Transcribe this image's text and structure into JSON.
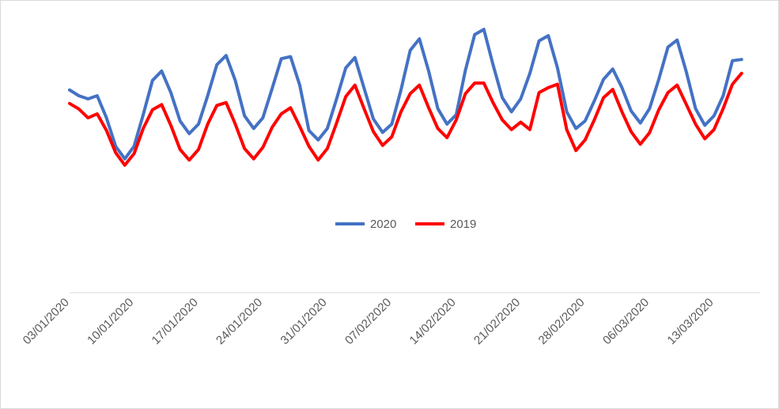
{
  "chart_data": {
    "type": "line",
    "title": "",
    "xlabel": "",
    "ylabel": "",
    "grid": false,
    "legend_position": "center",
    "tick_labels": [
      "03/01/2020",
      "10/01/2020",
      "17/01/2020",
      "24/01/2020",
      "31/01/2020",
      "07/02/2020",
      "14/02/2020",
      "21/02/2020",
      "28/02/2020",
      "06/03/2020",
      "13/03/2020"
    ],
    "x": [
      "03/01/2020",
      "04/01/2020",
      "05/01/2020",
      "06/01/2020",
      "07/01/2020",
      "08/01/2020",
      "09/01/2020",
      "10/01/2020",
      "11/01/2020",
      "12/01/2020",
      "13/01/2020",
      "14/01/2020",
      "15/01/2020",
      "16/01/2020",
      "17/01/2020",
      "18/01/2020",
      "19/01/2020",
      "20/01/2020",
      "21/01/2020",
      "22/01/2020",
      "23/01/2020",
      "24/01/2020",
      "25/01/2020",
      "26/01/2020",
      "27/01/2020",
      "28/01/2020",
      "29/01/2020",
      "30/01/2020",
      "31/01/2020",
      "01/02/2020",
      "02/02/2020",
      "03/02/2020",
      "04/02/2020",
      "05/02/2020",
      "06/02/2020",
      "07/02/2020",
      "08/02/2020",
      "09/02/2020",
      "10/02/2020",
      "11/02/2020",
      "12/02/2020",
      "13/02/2020",
      "14/02/2020",
      "15/02/2020",
      "16/02/2020",
      "17/02/2020",
      "18/02/2020",
      "19/02/2020",
      "20/02/2020",
      "21/02/2020",
      "22/02/2020",
      "23/02/2020",
      "24/02/2020",
      "25/02/2020",
      "26/02/2020",
      "27/02/2020",
      "28/02/2020",
      "29/02/2020",
      "01/03/2020",
      "02/03/2020",
      "03/03/2020",
      "04/03/2020",
      "05/03/2020",
      "06/03/2020",
      "07/03/2020",
      "08/03/2020",
      "09/03/2020",
      "10/03/2020",
      "11/03/2020",
      "12/03/2020",
      "13/03/2020",
      "14/03/2020",
      "15/03/2020",
      "16/03/2020",
      "17/03/2020"
    ],
    "ylim": [
      0,
      100
    ],
    "series": [
      {
        "name": "2020",
        "color": "#4472c4",
        "values": [
          70.6,
          68.6,
          67.5,
          68.6,
          60.9,
          51.0,
          46.6,
          51.0,
          62.0,
          73.9,
          77.2,
          69.7,
          59.8,
          55.4,
          58.7,
          68.6,
          79.4,
          82.6,
          73.9,
          61.6,
          57.2,
          60.9,
          71.1,
          81.5,
          82.2,
          72.3,
          56.5,
          53.2,
          57.2,
          67.5,
          78.3,
          81.9,
          71.1,
          60.5,
          55.8,
          58.7,
          70.6,
          84.4,
          88.4,
          77.2,
          64.1,
          58.7,
          62.0,
          77.5,
          89.9,
          91.7,
          79.4,
          67.9,
          63.0,
          67.5,
          76.4,
          87.7,
          89.5,
          78.3,
          63.0,
          57.2,
          59.8,
          66.8,
          74.3,
          77.9,
          71.4,
          63.3,
          59.1,
          64.1,
          74.3,
          85.5,
          88.0,
          76.8,
          64.1,
          58.3,
          61.6,
          68.6,
          80.8,
          81.2,
          null
        ]
      },
      {
        "name": "2019",
        "color": "#ff0000",
        "values": [
          65.9,
          64.0,
          60.9,
          62.3,
          56.5,
          48.8,
          44.4,
          48.4,
          57.2,
          63.7,
          65.5,
          58.3,
          49.9,
          46.2,
          49.9,
          58.7,
          65.2,
          66.2,
          58.7,
          50.2,
          46.6,
          50.6,
          57.6,
          62.3,
          64.4,
          57.9,
          51.0,
          46.2,
          50.2,
          59.1,
          68.3,
          72.3,
          64.0,
          56.1,
          51.3,
          54.3,
          63.0,
          69.3,
          72.3,
          64.4,
          57.2,
          54.0,
          60.2,
          69.3,
          73.0,
          73.0,
          66.2,
          60.2,
          56.8,
          59.4,
          56.8,
          69.7,
          71.4,
          72.6,
          56.8,
          49.5,
          53.2,
          60.2,
          67.9,
          70.8,
          63.0,
          56.1,
          51.7,
          55.7,
          63.7,
          69.7,
          72.3,
          65.5,
          58.7,
          53.6,
          56.8,
          64.1,
          72.6,
          76.4,
          null
        ]
      }
    ]
  }
}
